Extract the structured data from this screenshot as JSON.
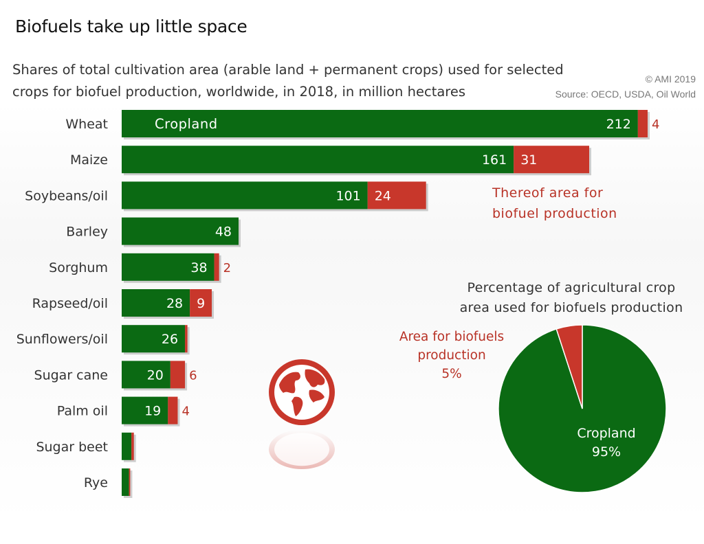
{
  "header": {
    "title": "Biofuels take up little space",
    "subtitle": "Shares of total cultivation area (arable land + permanent crops) used for selected crops for biofuel production, worldwide, in 2018, in million hectares",
    "copyright": "© AMI 2019",
    "source": "Source: OECD, USDA, Oil World"
  },
  "annotations": {
    "cropland_in_bar": "Cropland",
    "biofuel_line1": "Thereof area for",
    "biofuel_line2": "biofuel production"
  },
  "pie_labels": {
    "title_line1": "Percentage of agricultural crop",
    "title_line2": "area used for biofuels production",
    "bio_line1": "Area for biofuels",
    "bio_line2": "production",
    "bio_pct": "5%",
    "crop_line1": "Cropland",
    "crop_pct": "95%"
  },
  "colors": {
    "cropland": "#0b6a13",
    "biofuel": "#c8372b",
    "label_red": "#b83226"
  },
  "icons": {
    "globe": "globe-icon"
  },
  "chart_data": [
    {
      "type": "bar",
      "orientation": "horizontal",
      "stacked": true,
      "categories": [
        "Wheat",
        "Maize",
        "Soybeans/oil",
        "Barley",
        "Sorghum",
        "Rapseed/oil",
        "Sunflowers/oil",
        "Sugar cane",
        "Palm oil",
        "Sugar beet",
        "Rye"
      ],
      "series": [
        {
          "name": "Cropland",
          "values": [
            212,
            161,
            101,
            48,
            38,
            28,
            26,
            20,
            19,
            4,
            3
          ],
          "labels": [
            "212",
            "161",
            "101",
            "48",
            "38",
            "28",
            "26",
            "20",
            "19",
            "",
            ""
          ]
        },
        {
          "name": "Thereof area for biofuel production",
          "values": [
            4,
            31,
            24,
            0,
            2,
            9,
            1,
            6,
            4,
            1,
            0.5
          ],
          "labels": [
            "4",
            "31",
            "24",
            "",
            "2",
            "9",
            "",
            "6",
            "4",
            "",
            ""
          ]
        }
      ],
      "label_outside_after": [
        "Wheat",
        "Sorghum",
        "Sugar cane",
        "Palm oil"
      ],
      "xlim": [
        0,
        216
      ],
      "grid": false
    },
    {
      "type": "pie",
      "slices": [
        {
          "name": "Cropland",
          "value": 95
        },
        {
          "name": "Area for biofuels production",
          "value": 5
        }
      ]
    }
  ]
}
